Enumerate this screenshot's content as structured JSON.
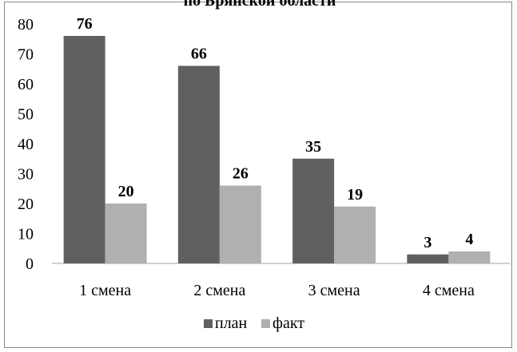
{
  "chart_data": {
    "type": "bar",
    "title": "по Брянской области",
    "categories": [
      "1 смена",
      "2 смена",
      "3 смена",
      "4 смена"
    ],
    "series": [
      {
        "name": "план",
        "values": [
          76,
          66,
          35,
          3
        ],
        "color": "#606060"
      },
      {
        "name": "факт",
        "values": [
          20,
          26,
          19,
          4
        ],
        "color": "#b0b0b0"
      }
    ],
    "ylim": [
      0,
      80
    ],
    "yticks": [
      0,
      10,
      20,
      30,
      40,
      50,
      60,
      70,
      80
    ],
    "grid": false,
    "legend": "bottom",
    "data_labels": true
  }
}
